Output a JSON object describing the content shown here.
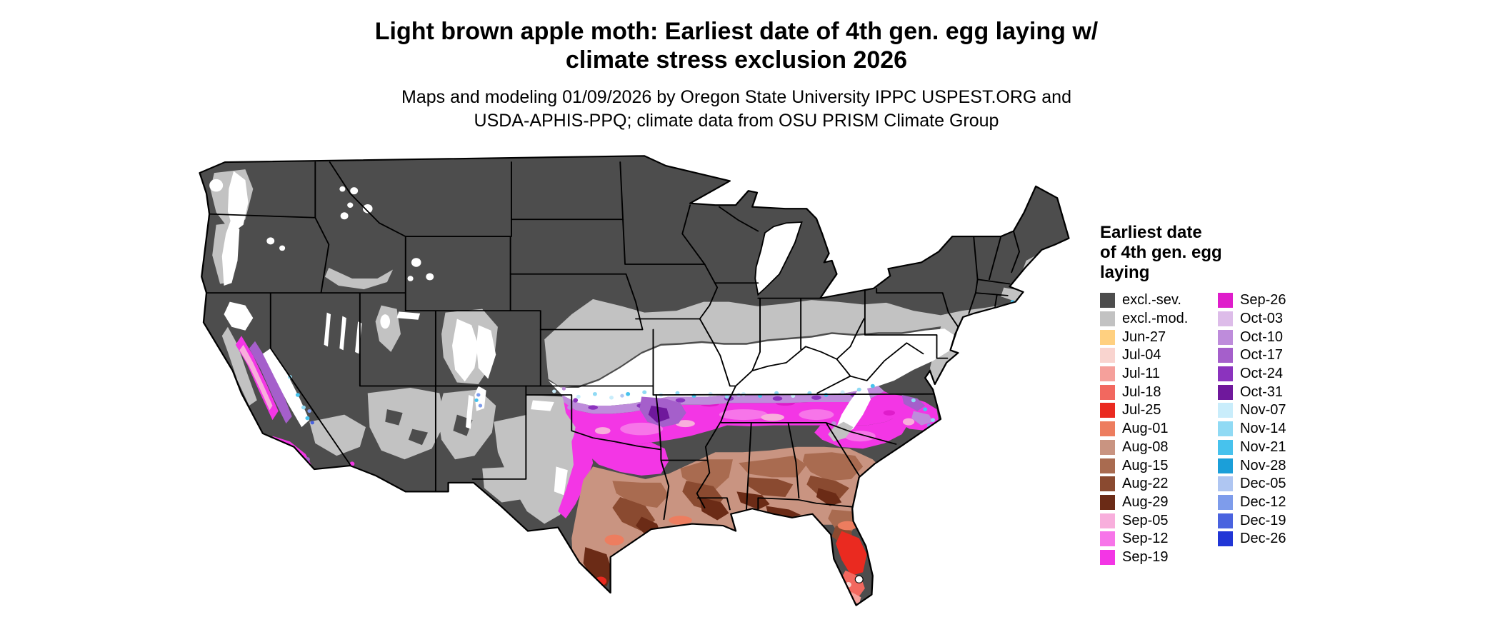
{
  "title": {
    "line1": "Light brown apple moth: Earliest date of 4th gen. egg laying w/",
    "line2": "climate stress exclusion 2026"
  },
  "subtitle": {
    "line1": "Maps and modeling 01/09/2026 by Oregon State University IPPC USPEST.ORG and",
    "line2": "USDA-APHIS-PPQ; climate data from OSU PRISM Climate Group"
  },
  "legend": {
    "title_lines": [
      "Earliest date",
      "of 4th gen. egg",
      "laying"
    ],
    "column1": [
      {
        "key": "excl_sev",
        "label": "excl.-sev.",
        "color": "#4D4D4D"
      },
      {
        "key": "excl_mod",
        "label": "excl.-mod.",
        "color": "#C2C2C2"
      },
      {
        "key": "jun27",
        "label": "Jun-27",
        "color": "#FFD080"
      },
      {
        "key": "jul04",
        "label": "Jul-04",
        "color": "#F9D4CF"
      },
      {
        "key": "jul11",
        "label": "Jul-11",
        "color": "#F5A09B"
      },
      {
        "key": "jul18",
        "label": "Jul-18",
        "color": "#F2685F"
      },
      {
        "key": "jul25",
        "label": "Jul-25",
        "color": "#EA2A20"
      },
      {
        "key": "aug01",
        "label": "Aug-01",
        "color": "#ED7D5F"
      },
      {
        "key": "aug08",
        "label": "Aug-08",
        "color": "#C99481"
      },
      {
        "key": "aug15",
        "label": "Aug-15",
        "color": "#A96B50"
      },
      {
        "key": "aug22",
        "label": "Aug-22",
        "color": "#8A4A30"
      },
      {
        "key": "aug29",
        "label": "Aug-29",
        "color": "#6B2B16"
      },
      {
        "key": "sep05",
        "label": "Sep-05",
        "color": "#F8AEDC"
      },
      {
        "key": "sep12",
        "label": "Sep-12",
        "color": "#F775E9"
      },
      {
        "key": "sep19",
        "label": "Sep-19",
        "color": "#F336E5"
      }
    ],
    "column2": [
      {
        "key": "sep26",
        "label": "Sep-26",
        "color": "#DF1DCB"
      },
      {
        "key": "oct03",
        "label": "Oct-03",
        "color": "#DDBCE9"
      },
      {
        "key": "oct10",
        "label": "Oct-10",
        "color": "#BE8CDB"
      },
      {
        "key": "oct17",
        "label": "Oct-17",
        "color": "#A55FCB"
      },
      {
        "key": "oct24",
        "label": "Oct-24",
        "color": "#8B33BE"
      },
      {
        "key": "oct31",
        "label": "Oct-31",
        "color": "#6F189C"
      },
      {
        "key": "nov07",
        "label": "Nov-07",
        "color": "#C9EDFB"
      },
      {
        "key": "nov14",
        "label": "Nov-14",
        "color": "#90DAF4"
      },
      {
        "key": "nov21",
        "label": "Nov-21",
        "color": "#47C2ED"
      },
      {
        "key": "nov28",
        "label": "Nov-28",
        "color": "#1B9FD9"
      },
      {
        "key": "dec05",
        "label": "Dec-05",
        "color": "#AFC6F2"
      },
      {
        "key": "dec12",
        "label": "Dec-12",
        "color": "#7E9CEB"
      },
      {
        "key": "dec19",
        "label": "Dec-19",
        "color": "#4A63DF"
      },
      {
        "key": "dec26",
        "label": "Dec-26",
        "color": "#2136D6"
      }
    ]
  },
  "map": {
    "name": "contiguous-us-earliest-egg-laying-choropleth",
    "background": "#FFFFFF",
    "state_border_color": "#000000",
    "outline_color": "#000000"
  }
}
